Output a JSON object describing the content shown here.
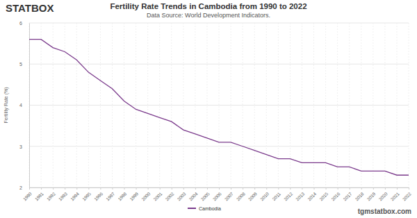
{
  "header": {
    "logo": "STATBOX"
  },
  "footer": "tgmstatbox.com",
  "chart_data": {
    "type": "line",
    "title": "Fertility Rate Trends in Cambodia from 1990 to 2022",
    "subtitle": "Data Source: World Development Indicators.",
    "y_label": "Fertility Rate (%)",
    "x": [
      1990,
      1991,
      1992,
      1993,
      1994,
      1995,
      1996,
      1997,
      1998,
      1999,
      2000,
      2001,
      2002,
      2003,
      2004,
      2005,
      2006,
      2007,
      2008,
      2009,
      2010,
      2011,
      2012,
      2013,
      2014,
      2015,
      2016,
      2017,
      2018,
      2019,
      2020,
      2021,
      2022
    ],
    "series": [
      {
        "name": "Cambodia",
        "color": "#7b3b8c",
        "values": [
          5.6,
          5.6,
          5.4,
          5.3,
          5.1,
          4.8,
          4.6,
          4.4,
          4.1,
          3.9,
          3.8,
          3.7,
          3.6,
          3.4,
          3.3,
          3.2,
          3.1,
          3.1,
          3.0,
          2.9,
          2.8,
          2.7,
          2.7,
          2.6,
          2.6,
          2.6,
          2.5,
          2.5,
          2.4,
          2.4,
          2.4,
          2.3,
          2.3
        ]
      }
    ],
    "xlim": [
      1990,
      2022
    ],
    "xticks": [
      1990,
      1991,
      1992,
      1993,
      1994,
      1995,
      1996,
      1997,
      1998,
      1999,
      2000,
      2001,
      2002,
      2003,
      2004,
      2005,
      2006,
      2007,
      2008,
      2009,
      2010,
      2011,
      2012,
      2013,
      2014,
      2015,
      2016,
      2017,
      2018,
      2019,
      2020,
      2021,
      2022
    ],
    "ylim": [
      2,
      6
    ],
    "yticks": [
      2,
      3,
      4,
      5,
      6
    ],
    "grid": true,
    "legend": "bottom"
  }
}
